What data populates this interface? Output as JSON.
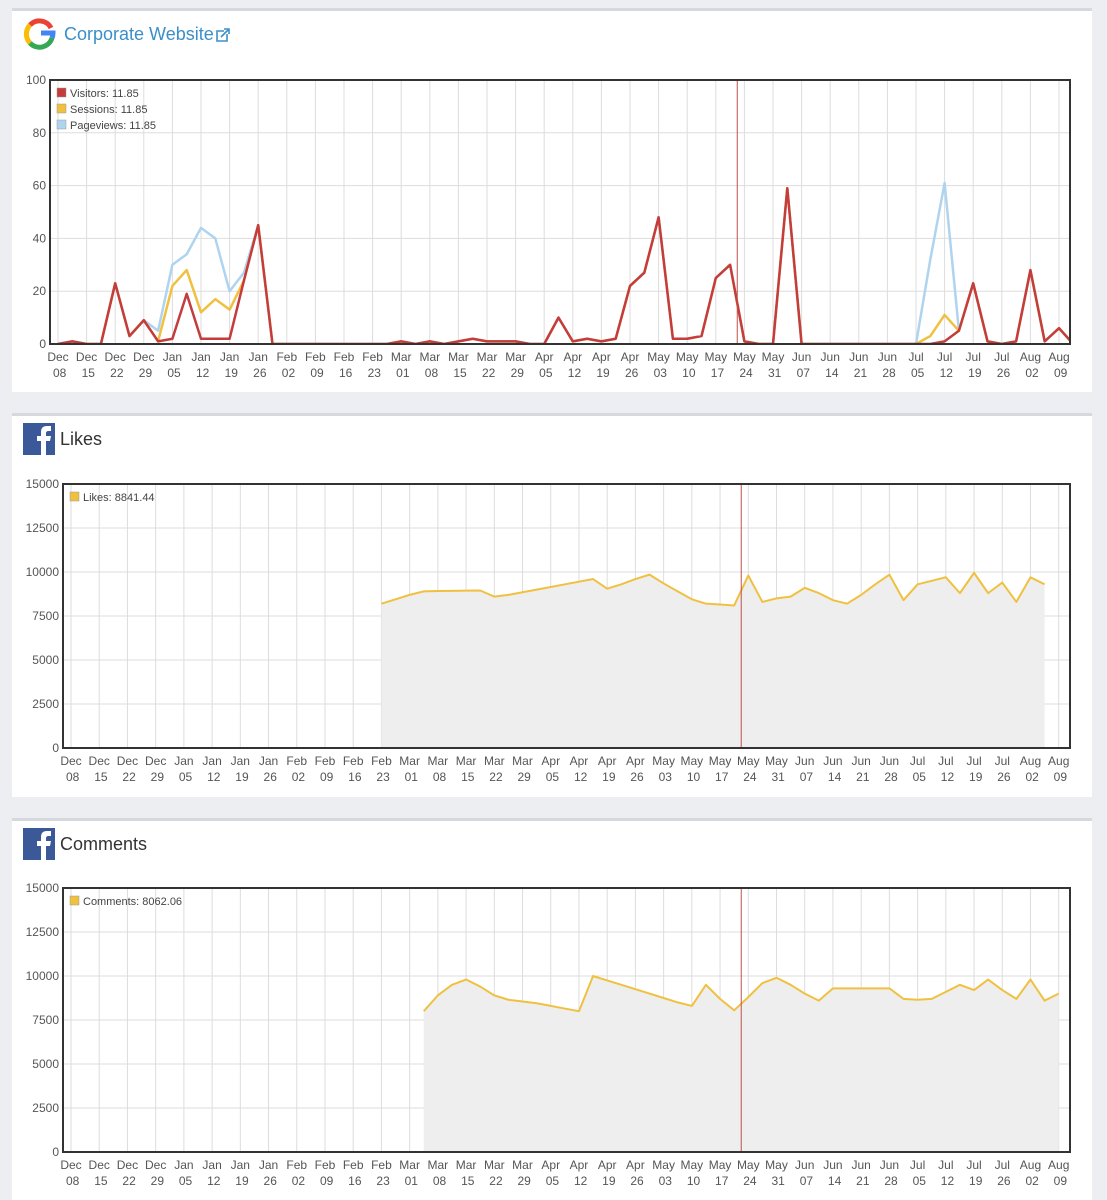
{
  "chart_data": [
    {
      "type": "line",
      "title": "Corporate Website",
      "legend": "upper left",
      "grid": true,
      "vline": "May 24",
      "categories": [
        "Dec 08",
        null,
        "Dec 15",
        null,
        "Dec 22",
        null,
        "Dec 29",
        null,
        "Jan 05",
        null,
        "Jan 12",
        null,
        "Jan 19",
        null,
        "Jan 26",
        null,
        "Feb 02",
        null,
        "Feb 09",
        null,
        "Feb 16",
        null,
        "Feb 23",
        null,
        "Mar 01",
        null,
        "Mar 08",
        null,
        "Mar 15",
        null,
        "Mar 22",
        null,
        "Mar 29",
        null,
        "Apr 05",
        null,
        "Apr 12",
        null,
        "Apr 19",
        null,
        "Apr 26",
        null,
        "May 03",
        null,
        "May 10",
        null,
        "May 17",
        null,
        "May 24",
        null,
        "May 31",
        null,
        "Jun 07",
        null,
        "Jun 14",
        null,
        "Jun 21",
        null,
        "Jun 28",
        null,
        "Jul 05",
        null,
        "Jul 12",
        null,
        "Jul 19",
        null,
        "Jul 26",
        null,
        "Aug 02",
        null,
        "Aug 09",
        null
      ],
      "ylim": [
        0,
        100
      ],
      "yticks": [
        0,
        20,
        40,
        60,
        80,
        100
      ],
      "series": [
        {
          "name": "Pageviews: 11.85",
          "color": "#aed4f0",
          "values": [
            0,
            1,
            0,
            0,
            23,
            3,
            9,
            5,
            30,
            34,
            44,
            40,
            20,
            27,
            45,
            0,
            0,
            0,
            0,
            0,
            0,
            0,
            0,
            0,
            1,
            0,
            1,
            0,
            1,
            2,
            1,
            1,
            1,
            0,
            0,
            10,
            1,
            2,
            1,
            2,
            22,
            27,
            48,
            2,
            2,
            3,
            25,
            30,
            1,
            0,
            0,
            59,
            0,
            0,
            0,
            0,
            0,
            0,
            0,
            0,
            0,
            32,
            61,
            5,
            23,
            1,
            0,
            1,
            28,
            1,
            6,
            0
          ]
        },
        {
          "name": "Sessions: 11.85",
          "color": "#f0c040",
          "values": [
            0,
            1,
            0,
            0,
            23,
            3,
            9,
            1,
            22,
            28,
            12,
            17,
            13,
            24,
            45,
            0,
            0,
            0,
            0,
            0,
            0,
            0,
            0,
            0,
            1,
            0,
            1,
            0,
            1,
            2,
            1,
            1,
            1,
            0,
            0,
            10,
            1,
            2,
            1,
            2,
            22,
            27,
            48,
            2,
            2,
            3,
            25,
            30,
            1,
            0,
            0,
            59,
            0,
            0,
            0,
            0,
            0,
            0,
            0,
            0,
            0,
            3,
            11,
            5,
            23,
            1,
            0,
            1,
            28,
            1,
            6,
            0
          ]
        },
        {
          "name": "Visitors: 11.85",
          "color": "#c43c3c",
          "values": [
            0,
            1,
            0,
            0,
            23,
            3,
            9,
            1,
            2,
            19,
            2,
            2,
            2,
            24,
            45,
            0,
            0,
            0,
            0,
            0,
            0,
            0,
            0,
            0,
            1,
            0,
            1,
            0,
            1,
            2,
            1,
            1,
            1,
            0,
            0,
            10,
            1,
            2,
            1,
            2,
            22,
            27,
            48,
            2,
            2,
            3,
            25,
            30,
            1,
            0,
            0,
            59,
            0,
            0,
            0,
            0,
            0,
            0,
            0,
            0,
            0,
            0,
            1,
            5,
            23,
            1,
            0,
            1,
            28,
            1,
            6,
            0
          ]
        }
      ]
    },
    {
      "type": "line",
      "title": "Likes",
      "legend": "upper left",
      "grid": true,
      "area": true,
      "vline": "May 24",
      "categories": [
        "Dec 08",
        null,
        "Dec 15",
        null,
        "Dec 22",
        null,
        "Dec 29",
        null,
        "Jan 05",
        null,
        "Jan 12",
        null,
        "Jan 19",
        null,
        "Jan 26",
        null,
        "Feb 02",
        null,
        "Feb 09",
        null,
        "Feb 16",
        null,
        "Feb 23",
        null,
        "Mar 01",
        null,
        "Mar 08",
        null,
        "Mar 15",
        null,
        "Mar 22",
        null,
        "Mar 29",
        null,
        "Apr 05",
        null,
        "Apr 12",
        null,
        "Apr 19",
        null,
        "Apr 26",
        null,
        "May 03",
        null,
        "May 10",
        null,
        "May 17",
        null,
        "May 24",
        null,
        "May 31",
        null,
        "Jun 07",
        null,
        "Jun 14",
        null,
        "Jun 21",
        null,
        "Jun 28",
        null,
        "Jul 05",
        null,
        "Jul 12",
        null,
        "Jul 19",
        null,
        "Jul 26",
        null,
        "Aug 02",
        null,
        "Aug 09",
        null
      ],
      "ylim": [
        0,
        15000
      ],
      "yticks": [
        0,
        2500,
        5000,
        7500,
        10000,
        12500,
        15000
      ],
      "series": [
        {
          "name": "Likes: 8841.44",
          "color": "#f0c040",
          "values": [
            null,
            null,
            null,
            null,
            null,
            null,
            null,
            null,
            null,
            null,
            null,
            null,
            null,
            null,
            null,
            null,
            null,
            null,
            null,
            null,
            null,
            null,
            8200,
            8450,
            8700,
            8900,
            8920,
            8930,
            8940,
            8950,
            8600,
            8700,
            8850,
            9000,
            9150,
            9300,
            9450,
            9600,
            9050,
            9300,
            9600,
            9850,
            9350,
            8900,
            8450,
            8200,
            8150,
            8100,
            9800,
            8300,
            8500,
            8600,
            9100,
            8800,
            8400,
            8200,
            8700,
            9300,
            9850,
            8400,
            9300,
            9500,
            9700,
            8800,
            9950,
            8800,
            9400,
            8300,
            9700,
            9300,
            null,
            null
          ]
        }
      ]
    },
    {
      "type": "line",
      "title": "Comments",
      "legend": "upper left",
      "grid": true,
      "area": true,
      "vline": "May 24",
      "categories": [
        "Dec 08",
        null,
        "Dec 15",
        null,
        "Dec 22",
        null,
        "Dec 29",
        null,
        "Jan 05",
        null,
        "Jan 12",
        null,
        "Jan 19",
        null,
        "Jan 26",
        null,
        "Feb 02",
        null,
        "Feb 09",
        null,
        "Feb 16",
        null,
        "Feb 23",
        null,
        "Mar 01",
        null,
        "Mar 08",
        null,
        "Mar 15",
        null,
        "Mar 22",
        null,
        "Mar 29",
        null,
        "Apr 05",
        null,
        "Apr 12",
        null,
        "Apr 19",
        null,
        "Apr 26",
        null,
        "May 03",
        null,
        "May 10",
        null,
        "May 17",
        null,
        "May 24",
        null,
        "May 31",
        null,
        "Jun 07",
        null,
        "Jun 14",
        null,
        "Jun 21",
        null,
        "Jun 28",
        null,
        "Jul 05",
        null,
        "Jul 12",
        null,
        "Jul 19",
        null,
        "Jul 26",
        null,
        "Aug 02",
        null,
        "Aug 09",
        null
      ],
      "ylim": [
        0,
        15000
      ],
      "yticks": [
        0,
        2500,
        5000,
        7500,
        10000,
        12500,
        15000
      ],
      "series": [
        {
          "name": "Comments: 8062.06",
          "color": "#f0c040",
          "values": [
            null,
            null,
            null,
            null,
            null,
            null,
            null,
            null,
            null,
            null,
            null,
            null,
            null,
            null,
            null,
            null,
            null,
            null,
            null,
            null,
            null,
            null,
            null,
            null,
            null,
            8000,
            8900,
            9500,
            9800,
            9400,
            8900,
            8650,
            8550,
            8450,
            8300,
            8150,
            8000,
            10000,
            9750,
            9500,
            9250,
            9000,
            8750,
            8500,
            8300,
            9500,
            8700,
            8050,
            8800,
            9600,
            9900,
            9500,
            9000,
            8600,
            9300,
            9300,
            9300,
            9300,
            9300,
            8700,
            8650,
            8700,
            9100,
            9500,
            9200,
            9800,
            9200,
            8700,
            9800,
            8600,
            9000,
            null
          ]
        }
      ]
    }
  ]
}
